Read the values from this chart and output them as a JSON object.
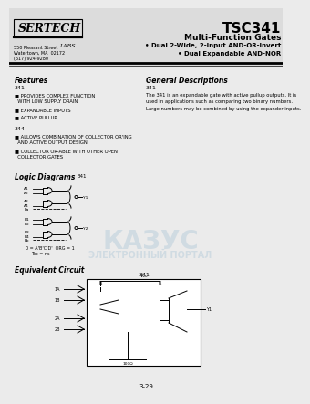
{
  "bg_color": "#ebebeb",
  "title_main": "TSC341",
  "title_sub1": "Multi-Function Gates",
  "title_sub2": "• Dual 2-Wide, 2-Input AND-OR-Invert",
  "title_sub3": "• Dual Expandable AND-NOR",
  "company": "SERTECH",
  "company_sub": "LABS",
  "address1": "550 Pleasant Street",
  "address2": "Watertown, MA  02172",
  "address3": "(617) 924-9280",
  "features_title": "Features",
  "f341": "341",
  "f341_items": [
    "■ PROVIDES COMPLEX FUNCTION\n  WITH LOW SUPPLY DRAIN",
    "■ EXPANDABLE INPUTS",
    "■ ACTIVE PULLUP"
  ],
  "f344": "344",
  "f344_items": [
    "■ ALLOWS COMBINATION OF COLLECTOR OR'ING\n  AND ACTIVE OUTPUT DESIGN",
    "■ COLLECTOR OR-ABLE WITH OTHER OPEN\n  COLLECTOR GATES"
  ],
  "gd_title": "General Descriptions",
  "gd_341": "341",
  "gd_text": "The 341 is an expandable gate with active pullup outputs. It is\nused in applications such as comparing two binary numbers.\nLarge numbers may be combined by using the expander inputs.",
  "logic_title": "Logic Diagrams",
  "equiv_title": "Equivalent Circuit",
  "page_num": "3-29",
  "watermark1": "КАЗУС",
  "watermark2": "ЭЛЕКТРОННЫЙ ПОРТАЛ",
  "wm_color": "#b0c8d8",
  "wm_alpha": 0.45
}
